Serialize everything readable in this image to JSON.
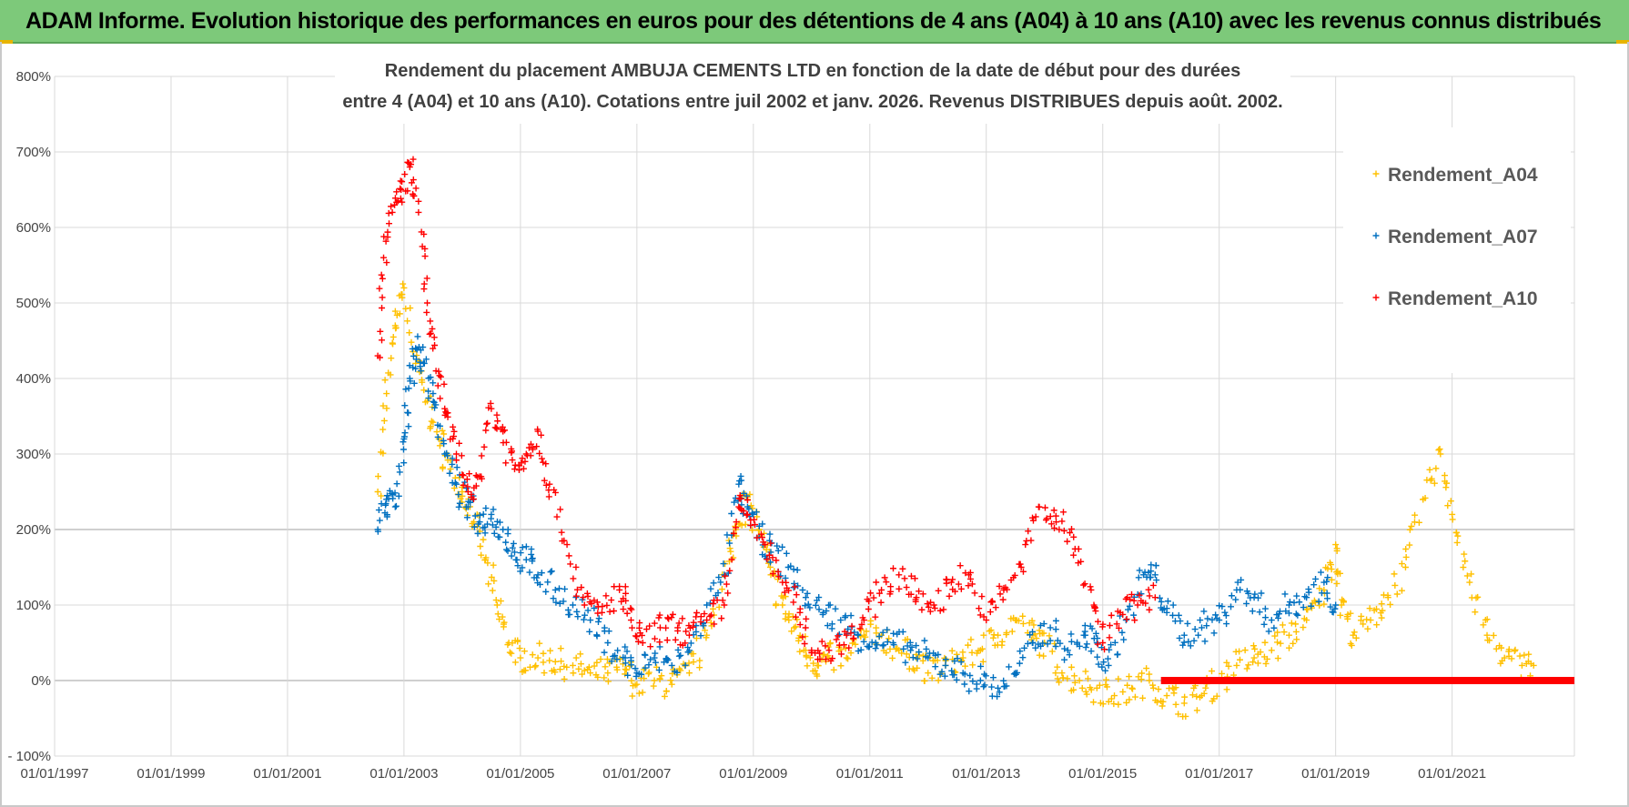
{
  "header": {
    "title": "ADAM Informe. Evolution historique des performances en euros pour des détentions de 4 ans (A04) à 10 ans (A10) avec les revenus connus distribués"
  },
  "colors": {
    "banner": "#7dc97a",
    "A04": "#ffc000",
    "A07": "#0070c0",
    "A10": "#ff0000",
    "grid": "#d9d9d9",
    "zero_line": "#bfbfbf"
  },
  "chart_data": {
    "type": "scatter",
    "title_lines": [
      "Rendement du placement AMBUJA CEMENTS LTD en fonction de la date de début pour des durées",
      "entre 4 (A04) et 10 ans (A10).  Cotations entre juil 2002 et janv. 2026. Revenus DISTRIBUES depuis août. 2002."
    ],
    "xlabel": "",
    "ylabel": "",
    "x_range": [
      1997.0,
      2023.1
    ],
    "ylim": [
      -100,
      800
    ],
    "x_ticks": [
      {
        "year": 1997,
        "label": "01/01/1997"
      },
      {
        "year": 1999,
        "label": "01/01/1999"
      },
      {
        "year": 2001,
        "label": "01/01/2001"
      },
      {
        "year": 2003,
        "label": "01/01/2003"
      },
      {
        "year": 2005,
        "label": "01/01/2005"
      },
      {
        "year": 2007,
        "label": "01/01/2007"
      },
      {
        "year": 2009,
        "label": "01/01/2009"
      },
      {
        "year": 2011,
        "label": "01/01/2011"
      },
      {
        "year": 2013,
        "label": "01/01/2013"
      },
      {
        "year": 2015,
        "label": "01/01/2015"
      },
      {
        "year": 2017,
        "label": "01/01/2017"
      },
      {
        "year": 2019,
        "label": "01/01/2019"
      },
      {
        "year": 2021,
        "label": "01/01/2021"
      }
    ],
    "y_ticks": [
      {
        "value": -100,
        "label": "- 100%"
      },
      {
        "value": 0,
        "label": "0%"
      },
      {
        "value": 100,
        "label": "100%"
      },
      {
        "value": 200,
        "label": "200%"
      },
      {
        "value": 300,
        "label": "300%"
      },
      {
        "value": 400,
        "label": "400%"
      },
      {
        "value": 500,
        "label": "500%"
      },
      {
        "value": 600,
        "label": "600%"
      },
      {
        "value": 700,
        "label": "700%"
      },
      {
        "value": 800,
        "label": "800%"
      }
    ],
    "legend_position": "top-right",
    "marker": "+",
    "series": [
      {
        "name": "Rendement_A04",
        "color_key": "A04",
        "points": [
          [
            2002.55,
            250
          ],
          [
            2002.7,
            380
          ],
          [
            2002.85,
            470
          ],
          [
            2003.0,
            520
          ],
          [
            2003.2,
            420
          ],
          [
            2003.4,
            370
          ],
          [
            2003.6,
            320
          ],
          [
            2003.8,
            280
          ],
          [
            2004.0,
            250
          ],
          [
            2004.2,
            210
          ],
          [
            2004.4,
            160
          ],
          [
            2004.6,
            100
          ],
          [
            2004.8,
            50
          ],
          [
            2005.0,
            30
          ],
          [
            2005.3,
            30
          ],
          [
            2005.6,
            25
          ],
          [
            2005.9,
            20
          ],
          [
            2006.2,
            10
          ],
          [
            2006.5,
            10
          ],
          [
            2006.8,
            15
          ],
          [
            2007.0,
            -5
          ],
          [
            2007.3,
            0
          ],
          [
            2007.6,
            -5
          ],
          [
            2007.9,
            10
          ],
          [
            2008.2,
            60
          ],
          [
            2008.5,
            140
          ],
          [
            2008.7,
            200
          ],
          [
            2008.9,
            240
          ],
          [
            2009.1,
            200
          ],
          [
            2009.3,
            140
          ],
          [
            2009.5,
            100
          ],
          [
            2009.7,
            70
          ],
          [
            2009.9,
            40
          ],
          [
            2010.1,
            20
          ],
          [
            2010.3,
            30
          ],
          [
            2010.6,
            30
          ],
          [
            2010.9,
            60
          ],
          [
            2011.2,
            60
          ],
          [
            2011.5,
            40
          ],
          [
            2011.8,
            30
          ],
          [
            2012.0,
            10
          ],
          [
            2012.3,
            20
          ],
          [
            2012.6,
            30
          ],
          [
            2012.9,
            40
          ],
          [
            2013.2,
            60
          ],
          [
            2013.5,
            80
          ],
          [
            2013.8,
            60
          ],
          [
            2014.0,
            50
          ],
          [
            2014.3,
            10
          ],
          [
            2014.6,
            0
          ],
          [
            2014.9,
            -10
          ],
          [
            2015.2,
            -20
          ],
          [
            2015.5,
            -10
          ],
          [
            2015.8,
            0
          ],
          [
            2016.1,
            -20
          ],
          [
            2016.4,
            -30
          ],
          [
            2016.7,
            -20
          ],
          [
            2017.0,
            0
          ],
          [
            2017.3,
            20
          ],
          [
            2017.6,
            30
          ],
          [
            2017.9,
            40
          ],
          [
            2018.2,
            60
          ],
          [
            2018.5,
            80
          ],
          [
            2018.8,
            120
          ],
          [
            2019.0,
            180
          ],
          [
            2019.1,
            100
          ],
          [
            2019.3,
            60
          ],
          [
            2019.6,
            80
          ],
          [
            2019.9,
            110
          ],
          [
            2020.2,
            150
          ],
          [
            2020.5,
            240
          ],
          [
            2020.8,
            300
          ],
          [
            2021.0,
            220
          ],
          [
            2021.3,
            130
          ],
          [
            2021.6,
            60
          ],
          [
            2021.9,
            30
          ],
          [
            2022.2,
            20
          ],
          [
            2022.4,
            20
          ]
        ]
      },
      {
        "name": "Rendement_A07",
        "color_key": "A07",
        "points": [
          [
            2002.55,
            200
          ],
          [
            2002.7,
            240
          ],
          [
            2002.85,
            230
          ],
          [
            2003.0,
            320
          ],
          [
            2003.1,
            400
          ],
          [
            2003.2,
            440
          ],
          [
            2003.35,
            420
          ],
          [
            2003.5,
            380
          ],
          [
            2003.7,
            300
          ],
          [
            2003.9,
            260
          ],
          [
            2004.1,
            230
          ],
          [
            2004.3,
            210
          ],
          [
            2004.5,
            220
          ],
          [
            2004.7,
            200
          ],
          [
            2004.9,
            170
          ],
          [
            2005.1,
            160
          ],
          [
            2005.3,
            140
          ],
          [
            2005.6,
            120
          ],
          [
            2005.9,
            100
          ],
          [
            2006.2,
            80
          ],
          [
            2006.5,
            50
          ],
          [
            2006.8,
            30
          ],
          [
            2007.0,
            10
          ],
          [
            2007.3,
            30
          ],
          [
            2007.6,
            20
          ],
          [
            2007.9,
            40
          ],
          [
            2008.2,
            100
          ],
          [
            2008.5,
            140
          ],
          [
            2008.75,
            260
          ],
          [
            2008.9,
            230
          ],
          [
            2009.1,
            190
          ],
          [
            2009.3,
            170
          ],
          [
            2009.6,
            150
          ],
          [
            2009.9,
            110
          ],
          [
            2010.2,
            90
          ],
          [
            2010.5,
            80
          ],
          [
            2010.8,
            60
          ],
          [
            2011.1,
            50
          ],
          [
            2011.4,
            50
          ],
          [
            2011.7,
            40
          ],
          [
            2012.0,
            30
          ],
          [
            2012.3,
            20
          ],
          [
            2012.6,
            10
          ],
          [
            2012.9,
            0
          ],
          [
            2013.2,
            -10
          ],
          [
            2013.5,
            10
          ],
          [
            2013.8,
            50
          ],
          [
            2014.1,
            70
          ],
          [
            2014.4,
            40
          ],
          [
            2014.7,
            60
          ],
          [
            2014.9,
            50
          ],
          [
            2015.1,
            20
          ],
          [
            2015.4,
            80
          ],
          [
            2015.7,
            140
          ],
          [
            2015.9,
            140
          ],
          [
            2016.1,
            90
          ],
          [
            2016.4,
            60
          ],
          [
            2016.7,
            70
          ],
          [
            2017.0,
            80
          ],
          [
            2017.3,
            120
          ],
          [
            2017.6,
            110
          ],
          [
            2017.9,
            80
          ],
          [
            2018.2,
            100
          ],
          [
            2018.5,
            110
          ],
          [
            2018.8,
            130
          ],
          [
            2019.0,
            100
          ]
        ]
      },
      {
        "name": "Rendement_A10",
        "color_key": "A10",
        "points": [
          [
            2002.55,
            430
          ],
          [
            2002.65,
            560
          ],
          [
            2002.8,
            620
          ],
          [
            2002.95,
            650
          ],
          [
            2003.1,
            680
          ],
          [
            2003.25,
            620
          ],
          [
            2003.4,
            500
          ],
          [
            2003.55,
            410
          ],
          [
            2003.7,
            360
          ],
          [
            2003.9,
            300
          ],
          [
            2004.1,
            250
          ],
          [
            2004.3,
            270
          ],
          [
            2004.5,
            360
          ],
          [
            2004.7,
            330
          ],
          [
            2004.9,
            280
          ],
          [
            2005.1,
            300
          ],
          [
            2005.3,
            330
          ],
          [
            2005.5,
            260
          ],
          [
            2005.8,
            180
          ],
          [
            2006.1,
            100
          ],
          [
            2006.4,
            90
          ],
          [
            2006.7,
            120
          ],
          [
            2006.9,
            80
          ],
          [
            2007.1,
            50
          ],
          [
            2007.4,
            70
          ],
          [
            2007.7,
            70
          ],
          [
            2007.9,
            60
          ],
          [
            2008.2,
            80
          ],
          [
            2008.5,
            100
          ],
          [
            2008.75,
            230
          ],
          [
            2008.9,
            220
          ],
          [
            2009.2,
            180
          ],
          [
            2009.5,
            130
          ],
          [
            2009.8,
            90
          ],
          [
            2010.0,
            40
          ],
          [
            2010.3,
            40
          ],
          [
            2010.6,
            60
          ],
          [
            2010.9,
            80
          ],
          [
            2011.2,
            120
          ],
          [
            2011.5,
            140
          ],
          [
            2011.8,
            110
          ],
          [
            2012.1,
            100
          ],
          [
            2012.4,
            130
          ],
          [
            2012.7,
            140
          ],
          [
            2013.0,
            80
          ],
          [
            2013.3,
            120
          ],
          [
            2013.6,
            150
          ],
          [
            2013.9,
            230
          ],
          [
            2014.2,
            210
          ],
          [
            2014.5,
            190
          ],
          [
            2014.8,
            120
          ],
          [
            2015.0,
            50
          ],
          [
            2015.3,
            90
          ],
          [
            2015.6,
            100
          ],
          [
            2015.9,
            110
          ]
        ]
      }
    ],
    "flat_tail": {
      "series_name": "Rendement_A10",
      "value": 0,
      "from": 2016.0,
      "to": 2023.1
    }
  }
}
